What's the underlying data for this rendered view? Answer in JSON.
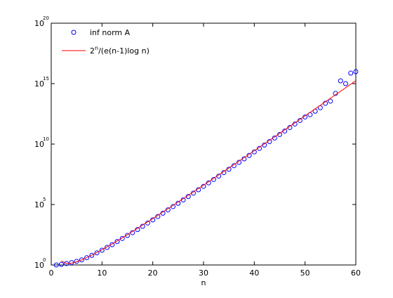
{
  "chart_data": {
    "type": "scatter",
    "xlabel": "n",
    "xlim": [
      0,
      60
    ],
    "xticks": [
      0,
      10,
      20,
      30,
      40,
      50,
      60
    ],
    "ylim": [
      1,
      1e+20
    ],
    "yscale": "log",
    "yticks": [
      {
        "value": 1,
        "label": "10",
        "exponent": "0"
      },
      {
        "value": 100000,
        "label": "10",
        "exponent": "5"
      },
      {
        "value": 10000000000,
        "label": "10",
        "exponent": "10"
      },
      {
        "value": 1000000000000000.0,
        "label": "10",
        "exponent": "15"
      },
      {
        "value": 1e+20,
        "label": "10",
        "exponent": "20"
      }
    ],
    "grid": false,
    "legend": "top-left",
    "series": [
      {
        "name": "inf norm A",
        "type": "scatter",
        "color": "#0000ff",
        "x": [
          1,
          2,
          3,
          4,
          5,
          6,
          7,
          8,
          9,
          10,
          11,
          12,
          13,
          14,
          15,
          16,
          17,
          18,
          19,
          20,
          21,
          22,
          23,
          24,
          25,
          26,
          27,
          28,
          29,
          30,
          31,
          32,
          33,
          34,
          35,
          36,
          37,
          38,
          39,
          40,
          41,
          42,
          43,
          44,
          45,
          46,
          47,
          48,
          49,
          50,
          51,
          52,
          53,
          54,
          55,
          56,
          57,
          58,
          59,
          60
        ],
        "values": [
          1,
          1.12,
          1.32,
          1.58,
          2.0,
          2.63,
          3.98,
          6.31,
          10,
          16.6,
          28.2,
          47.9,
          87.1,
          155,
          275,
          468,
          851,
          1580,
          2950,
          5370,
          10200,
          19100,
          36300,
          67600,
          126000,
          240000,
          457000,
          871000,
          1660000,
          3160000,
          6170000,
          11700000,
          22400000,
          43700000,
          83200000,
          162000000,
          309000000,
          603000000,
          1150000000,
          2240000000,
          4370000000,
          8320000000,
          16200000000,
          31600000000,
          61700000000,
          120000000000,
          234000000000,
          457000000000,
          891000000000,
          1740000000000,
          2690000000000,
          5250000000000,
          10200000000000,
          23400000000000,
          35500000000000,
          155000000000000,
          1700000000000000.0,
          1000000000000000.0,
          7410000000000000.0,
          9770000000000000.0
        ]
      },
      {
        "name": "2^n/(e(n-1)log n)",
        "type": "line",
        "color": "#ff0000",
        "x": [
          2,
          3,
          4,
          5,
          6,
          8,
          10,
          12,
          15,
          20,
          25,
          30,
          35,
          40,
          45,
          50,
          55,
          60
        ],
        "values": [
          2.12,
          1.34,
          1.42,
          1.83,
          2.63,
          6.47,
          18.2,
          55.1,
          318,
          6780,
          160000,
          4000000,
          105000000,
          2810000000,
          77300000000,
          2160000000000,
          61300000000000,
          1760000000000000.0
        ]
      }
    ]
  }
}
